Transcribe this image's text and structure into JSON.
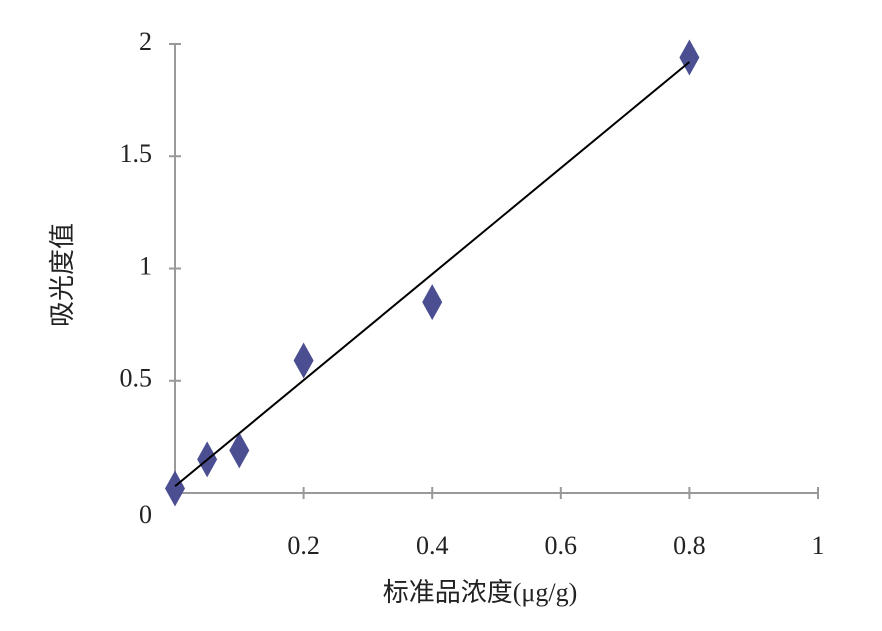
{
  "chart_data": {
    "type": "scatter",
    "x_label": "标准品浓度(μg/g)",
    "y_label": "吸光度值",
    "series": [
      {
        "color": "#4b4f92",
        "x": [
          0,
          0.05,
          0.1,
          0.2,
          0.4,
          0.8
        ],
        "values": [
          0.02,
          0.15,
          0.19,
          0.59,
          0.85,
          1.94
        ]
      }
    ],
    "trendline": {
      "color": "#000000",
      "x": [
        0,
        0.8
      ],
      "values": [
        0.03,
        1.92
      ]
    },
    "xlim": [
      0,
      1
    ],
    "xticks": [
      0.2,
      0.4,
      0.6,
      0.8,
      1
    ],
    "ylim": [
      0,
      2
    ],
    "yticks": [
      0,
      0.5,
      1,
      1.5,
      2
    ]
  }
}
